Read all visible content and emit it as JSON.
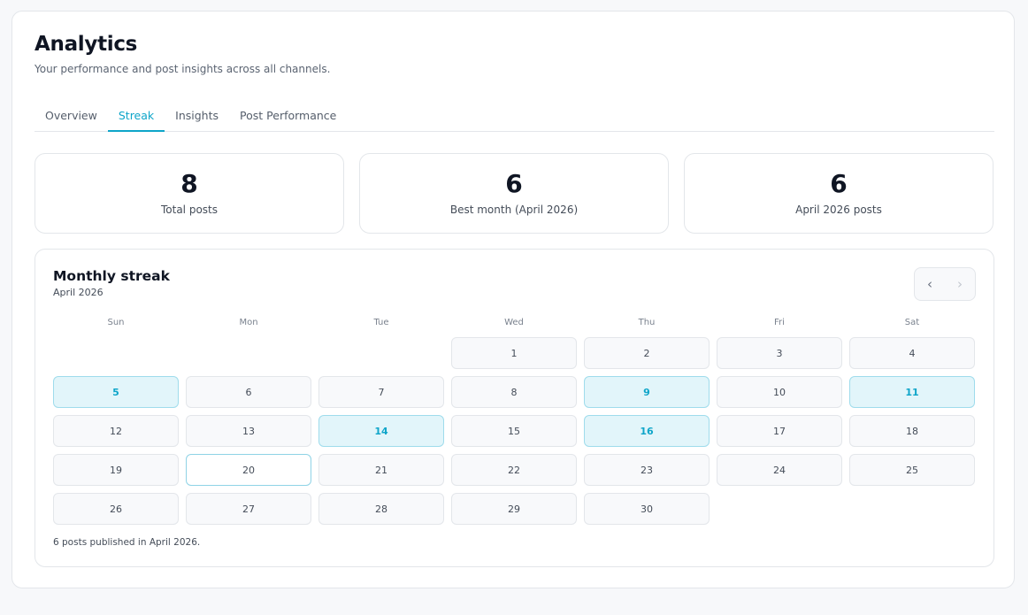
{
  "header": {
    "title": "Analytics",
    "subtitle": "Your performance and post insights across all channels."
  },
  "tabs": [
    {
      "label": "Overview"
    },
    {
      "label": "Streak",
      "active": true
    },
    {
      "label": "Insights"
    },
    {
      "label": "Post Performance"
    }
  ],
  "stats": [
    {
      "value": "8",
      "label": "Total posts"
    },
    {
      "value": "6",
      "label": "Best month (April 2026)"
    },
    {
      "value": "6",
      "label": "April 2026 posts"
    }
  ],
  "calendar": {
    "title": "Monthly streak",
    "month": "April 2026",
    "prev_icon": "chevron-left-icon",
    "next_icon": "chevron-right-icon",
    "weekdays": [
      "Sun",
      "Mon",
      "Tue",
      "Wed",
      "Thu",
      "Fri",
      "Sat"
    ],
    "first_weekday": 3,
    "days_in_month": 30,
    "posted_days": [
      5,
      9,
      11,
      14,
      16
    ],
    "today": 20,
    "footer": "6 posts published in April 2026."
  },
  "colors": {
    "accent": "#0ea5c9",
    "posted_bg": "#e2f5fa"
  }
}
